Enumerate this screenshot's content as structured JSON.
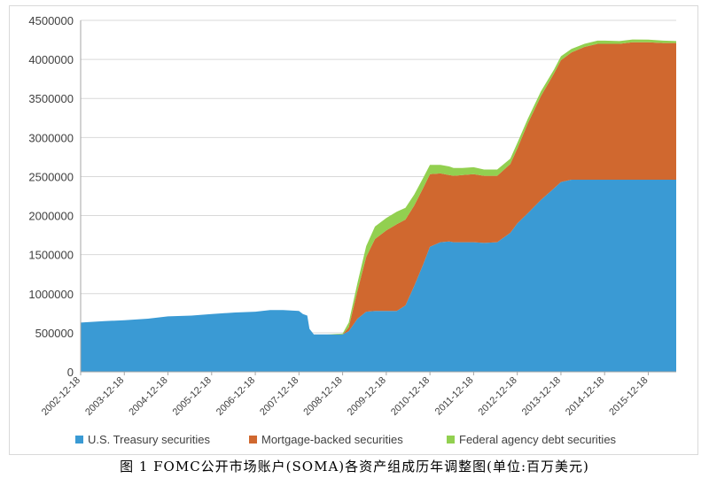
{
  "caption": "图 1  FOMC公开市场账户(SOMA)各资产组成历年调整图(单位:百万美元)",
  "chart_data": {
    "type": "area",
    "stacked": true,
    "ylim": [
      0,
      4500000
    ],
    "yticks": [
      0,
      500000,
      1000000,
      1500000,
      2000000,
      2500000,
      3000000,
      3500000,
      4000000,
      4500000
    ],
    "xlim": [
      2002.96,
      2016.6
    ],
    "xticks": [
      "2002-12-18",
      "2003-12-18",
      "2004-12-18",
      "2005-12-18",
      "2006-12-18",
      "2007-12-18",
      "2008-12-18",
      "2009-12-18",
      "2010-12-18",
      "2011-12-18",
      "2012-12-18",
      "2013-12-18",
      "2014-12-18",
      "2015-12-18"
    ],
    "grid": "horizontal",
    "legend_position": "bottom",
    "x": [
      2002.96,
      2003.5,
      2003.96,
      2004.5,
      2004.96,
      2005.5,
      2005.96,
      2006.5,
      2006.96,
      2007.3,
      2007.6,
      2007.96,
      2008.05,
      2008.15,
      2008.2,
      2008.3,
      2008.6,
      2008.96,
      2009.1,
      2009.3,
      2009.5,
      2009.7,
      2009.96,
      2010.2,
      2010.4,
      2010.6,
      2010.8,
      2010.96,
      2011.2,
      2011.4,
      2011.5,
      2011.7,
      2011.96,
      2012.2,
      2012.5,
      2012.8,
      2012.96,
      2013.2,
      2013.5,
      2013.8,
      2013.96,
      2014.2,
      2014.5,
      2014.8,
      2014.96,
      2015.3,
      2015.6,
      2015.96,
      2016.3,
      2016.6
    ],
    "series": [
      {
        "name": "U.S. Treasury securities",
        "color": "#3a9ad4",
        "values": [
          630000,
          650000,
          660000,
          680000,
          710000,
          720000,
          740000,
          760000,
          770000,
          790000,
          790000,
          780000,
          740000,
          720000,
          550000,
          480000,
          480000,
          480000,
          520000,
          680000,
          770000,
          780000,
          780000,
          780000,
          850000,
          1100000,
          1370000,
          1600000,
          1660000,
          1670000,
          1660000,
          1660000,
          1660000,
          1650000,
          1660000,
          1780000,
          1900000,
          2030000,
          2200000,
          2350000,
          2430000,
          2460000,
          2460000,
          2460000,
          2460000,
          2460000,
          2460000,
          2460000,
          2460000,
          2460000
        ]
      },
      {
        "name": "Mortgage-backed securities",
        "color": "#d0682f",
        "values": [
          0,
          0,
          0,
          0,
          0,
          0,
          0,
          0,
          0,
          0,
          0,
          0,
          0,
          0,
          0,
          0,
          0,
          0,
          50000,
          360000,
          700000,
          920000,
          1030000,
          1110000,
          1100000,
          1030000,
          980000,
          930000,
          880000,
          850000,
          850000,
          860000,
          870000,
          860000,
          850000,
          880000,
          960000,
          1150000,
          1330000,
          1470000,
          1560000,
          1630000,
          1700000,
          1740000,
          1740000,
          1740000,
          1760000,
          1760000,
          1750000,
          1750000
        ]
      },
      {
        "name": "Federal agency debt securities",
        "color": "#92d050",
        "values": [
          0,
          0,
          0,
          0,
          0,
          0,
          0,
          0,
          0,
          0,
          0,
          0,
          0,
          0,
          0,
          0,
          0,
          10000,
          60000,
          100000,
          140000,
          160000,
          160000,
          160000,
          150000,
          140000,
          130000,
          120000,
          110000,
          110000,
          100000,
          90000,
          90000,
          80000,
          80000,
          70000,
          70000,
          60000,
          60000,
          50000,
          50000,
          45000,
          40000,
          40000,
          40000,
          35000,
          35000,
          33000,
          30000,
          25000
        ]
      }
    ]
  }
}
